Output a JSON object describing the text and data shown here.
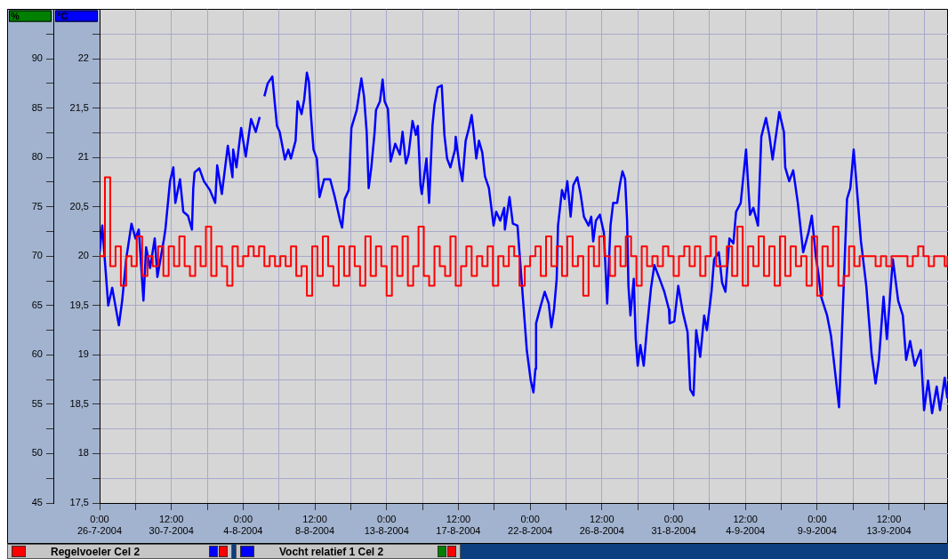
{
  "chart_data": {
    "type": "line",
    "ylabel": "%",
    "y2label": "°C",
    "legend": "bottom",
    "grid": true,
    "marker": "none",
    "xlim": [
      "2004-07-26T00:00",
      "2004-09-17T05:00"
    ],
    "xticks": [
      {
        "value": "2004-07-26T00:00",
        "label": "0:00\n26-7-2004"
      },
      {
        "value": "2004-07-28T06:00",
        "label": null
      },
      {
        "value": "2004-07-30T12:00",
        "label": "12:00\n30-7-2004"
      },
      {
        "value": "2004-08-01T18:00",
        "label": null
      },
      {
        "value": "2004-08-04T00:00",
        "label": "0:00\n4-8-2004"
      },
      {
        "value": "2004-08-06T06:00",
        "label": null
      },
      {
        "value": "2004-08-08T12:00",
        "label": "12:00\n8-8-2004"
      },
      {
        "value": "2004-08-10T18:00",
        "label": null
      },
      {
        "value": "2004-08-13T00:00",
        "label": "0:00\n13-8-2004"
      },
      {
        "value": "2004-08-15T06:00",
        "label": null
      },
      {
        "value": "2004-08-17T12:00",
        "label": "12:00\n17-8-2004"
      },
      {
        "value": "2004-08-19T18:00",
        "label": null
      },
      {
        "value": "2004-08-22T00:00",
        "label": "0:00\n22-8-2004"
      },
      {
        "value": "2004-08-24T06:00",
        "label": null
      },
      {
        "value": "2004-08-26T12:00",
        "label": "12:00\n26-8-2004"
      },
      {
        "value": "2004-08-28T18:00",
        "label": null
      },
      {
        "value": "2004-08-31T00:00",
        "label": "0:00\n31-8-2004"
      },
      {
        "value": "2004-09-02T06:00",
        "label": null
      },
      {
        "value": "2004-09-04T12:00",
        "label": "12:00\n4-9-2004"
      },
      {
        "value": "2004-09-06T18:00",
        "label": null
      },
      {
        "value": "2004-09-09T00:00",
        "label": "0:00\n9-9-2004"
      },
      {
        "value": "2004-09-11T06:00",
        "label": null
      },
      {
        "value": "2004-09-13T12:00",
        "label": "12:00\n13-9-2004"
      },
      {
        "value": "2004-09-15T18:00",
        "label": null
      }
    ],
    "ylim": [
      45,
      95
    ],
    "yticks": [
      45,
      {
        "value": 47.5,
        "label": null
      },
      50,
      {
        "value": 52.5,
        "label": null
      },
      55,
      {
        "value": 57.5,
        "label": null
      },
      60,
      {
        "value": 62.5,
        "label": null
      },
      65,
      {
        "value": 67.5,
        "label": null
      },
      70,
      {
        "value": 72.5,
        "label": null
      },
      75,
      {
        "value": 77.5,
        "label": null
      },
      80,
      {
        "value": 82.5,
        "label": null
      },
      85,
      {
        "value": 87.5,
        "label": null
      },
      90,
      {
        "value": 92.5,
        "label": null
      }
    ],
    "y2lim": [
      17.5,
      22.5
    ],
    "y2ticks": [
      {
        "value": 17.5,
        "label": "17,5"
      },
      {
        "value": 17.75,
        "label": null
      },
      18,
      {
        "value": 18.25,
        "label": null
      },
      {
        "value": 18.5,
        "label": "18,5"
      },
      {
        "value": 18.75,
        "label": null
      },
      19,
      {
        "value": 19.25,
        "label": null
      },
      {
        "value": 19.5,
        "label": "19,5"
      },
      {
        "value": 19.75,
        "label": null
      },
      20,
      {
        "value": 20.25,
        "label": null
      },
      {
        "value": 20.5,
        "label": "20,5"
      },
      {
        "value": 20.75,
        "label": null
      },
      21,
      {
        "value": 21.25,
        "label": null
      },
      {
        "value": 21.5,
        "label": "21,5"
      },
      {
        "value": 21.75,
        "label": null
      },
      22,
      {
        "value": 22.25,
        "label": null
      }
    ],
    "series": [
      {
        "name": "Regelvoeler Cel 2",
        "type": "step",
        "axis": "y2",
        "color": "#ff0000",
        "x": [
          "2004-07-26T00:00",
          "2004-07-26T08:00",
          "2004-07-26T16:00",
          "2004-07-27T00:00",
          "2004-07-27T08:00",
          "2004-07-27T16:00",
          "2004-07-28T00:00",
          "2004-07-28T08:00",
          "2004-07-28T16:00",
          "2004-07-29T00:00",
          "2004-07-29T08:00",
          "2004-07-29T16:00",
          "2004-07-30T00:00",
          "2004-07-30T08:00",
          "2004-07-30T16:00",
          "2004-07-31T00:00",
          "2004-07-31T08:00",
          "2004-07-31T16:00",
          "2004-08-01T00:00",
          "2004-08-01T08:00",
          "2004-08-01T16:00",
          "2004-08-02T00:00",
          "2004-08-02T08:00",
          "2004-08-02T16:00",
          "2004-08-03T00:00",
          "2004-08-03T08:00",
          "2004-08-03T16:00",
          "2004-08-04T00:00",
          "2004-08-04T08:00",
          "2004-08-04T16:00",
          "2004-08-05T00:00",
          "2004-08-05T08:00",
          "2004-08-05T16:00",
          "2004-08-06T00:00",
          "2004-08-06T08:00",
          "2004-08-06T16:00",
          "2004-08-07T00:00",
          "2004-08-07T08:00",
          "2004-08-07T16:00",
          "2004-08-08T00:00",
          "2004-08-08T08:00",
          "2004-08-08T16:00",
          "2004-08-09T00:00",
          "2004-08-09T08:00",
          "2004-08-09T16:00",
          "2004-08-10T00:00",
          "2004-08-10T08:00",
          "2004-08-10T16:00",
          "2004-08-11T00:00",
          "2004-08-11T08:00",
          "2004-08-11T16:00",
          "2004-08-12T00:00",
          "2004-08-12T08:00",
          "2004-08-12T16:00",
          "2004-08-13T00:00",
          "2004-08-13T08:00",
          "2004-08-13T16:00",
          "2004-08-14T00:00",
          "2004-08-14T08:00",
          "2004-08-14T16:00",
          "2004-08-15T00:00",
          "2004-08-15T08:00",
          "2004-08-15T16:00",
          "2004-08-16T00:00",
          "2004-08-16T08:00",
          "2004-08-16T16:00",
          "2004-08-17T00:00",
          "2004-08-17T08:00",
          "2004-08-17T16:00",
          "2004-08-18T00:00",
          "2004-08-18T08:00",
          "2004-08-18T16:00",
          "2004-08-19T00:00",
          "2004-08-19T08:00",
          "2004-08-19T16:00",
          "2004-08-20T00:00",
          "2004-08-20T08:00",
          "2004-08-20T16:00",
          "2004-08-21T00:00",
          "2004-08-21T08:00",
          "2004-08-21T16:00",
          "2004-08-22T00:00",
          "2004-08-22T08:00",
          "2004-08-22T16:00",
          "2004-08-23T00:00",
          "2004-08-23T08:00",
          "2004-08-23T16:00",
          "2004-08-24T00:00",
          "2004-08-24T08:00",
          "2004-08-24T16:00",
          "2004-08-25T00:00",
          "2004-08-25T08:00",
          "2004-08-25T16:00",
          "2004-08-26T00:00",
          "2004-08-26T08:00",
          "2004-08-26T16:00",
          "2004-08-27T00:00",
          "2004-08-27T08:00",
          "2004-08-27T16:00",
          "2004-08-28T00:00",
          "2004-08-28T08:00",
          "2004-08-28T16:00",
          "2004-08-29T00:00",
          "2004-08-29T08:00",
          "2004-08-29T16:00",
          "2004-08-30T00:00",
          "2004-08-30T08:00",
          "2004-08-30T16:00",
          "2004-08-31T00:00",
          "2004-08-31T08:00",
          "2004-08-31T16:00",
          "2004-09-01T00:00",
          "2004-09-01T08:00",
          "2004-09-01T16:00",
          "2004-09-02T00:00",
          "2004-09-02T08:00",
          "2004-09-02T16:00",
          "2004-09-03T00:00",
          "2004-09-03T08:00",
          "2004-09-03T16:00",
          "2004-09-04T00:00",
          "2004-09-04T08:00",
          "2004-09-04T16:00",
          "2004-09-05T00:00",
          "2004-09-05T08:00",
          "2004-09-05T16:00",
          "2004-09-06T00:00",
          "2004-09-06T08:00",
          "2004-09-06T16:00",
          "2004-09-07T00:00",
          "2004-09-07T08:00",
          "2004-09-07T16:00",
          "2004-09-08T00:00",
          "2004-09-08T08:00",
          "2004-09-08T16:00",
          "2004-09-09T00:00",
          "2004-09-09T08:00",
          "2004-09-09T16:00",
          "2004-09-10T00:00",
          "2004-09-10T08:00",
          "2004-09-10T16:00",
          "2004-09-11T00:00",
          "2004-09-11T08:00",
          "2004-09-11T16:00",
          "2004-09-12T00:00",
          "2004-09-12T08:00",
          "2004-09-12T16:00",
          "2004-09-13T00:00",
          "2004-09-13T08:00",
          "2004-09-13T16:00",
          "2004-09-14T00:00",
          "2004-09-14T08:00",
          "2004-09-14T16:00",
          "2004-09-15T00:00",
          "2004-09-15T08:00",
          "2004-09-15T16:00",
          "2004-09-16T00:00",
          "2004-09-16T08:00",
          "2004-09-16T16:00",
          "2004-09-17T00:00",
          "2004-09-17T04:00"
        ],
        "values": [
          20.0,
          20.8,
          19.9,
          20.1,
          19.7,
          20.0,
          19.9,
          20.2,
          19.8,
          20.0,
          19.9,
          20.1,
          19.8,
          20.1,
          19.9,
          20.2,
          19.9,
          19.8,
          20.1,
          19.9,
          20.3,
          19.8,
          20.1,
          19.9,
          19.7,
          20.1,
          19.9,
          20.0,
          20.1,
          20.0,
          20.1,
          19.9,
          20.0,
          19.9,
          20.0,
          19.9,
          20.1,
          19.8,
          19.9,
          19.6,
          20.1,
          19.8,
          20.2,
          19.9,
          19.7,
          20.1,
          19.8,
          20.1,
          19.9,
          19.7,
          20.2,
          19.8,
          20.1,
          19.9,
          19.6,
          20.1,
          19.8,
          20.2,
          19.7,
          19.9,
          20.3,
          19.8,
          19.7,
          20.1,
          19.9,
          19.8,
          20.2,
          19.7,
          19.9,
          20.1,
          19.8,
          20.0,
          19.9,
          20.1,
          19.7,
          20.0,
          19.9,
          20.1,
          20.0,
          19.7,
          19.9,
          20.0,
          20.1,
          19.8,
          20.2,
          19.9,
          20.1,
          19.8,
          20.2,
          19.9,
          20.0,
          19.6,
          20.1,
          19.9,
          20.2,
          20.0,
          19.8,
          20.1,
          19.9,
          20.2,
          20.0,
          19.7,
          20.1,
          19.9,
          20.0,
          19.9,
          20.1,
          20.0,
          19.8,
          20.0,
          20.1,
          19.9,
          20.1,
          19.8,
          20.0,
          20.2,
          19.9,
          19.9,
          20.1,
          19.8,
          20.3,
          19.7,
          20.1,
          19.9,
          20.2,
          19.8,
          20.1,
          19.7,
          20.2,
          19.8,
          20.1,
          19.9,
          20.0,
          19.7,
          20.2,
          19.6,
          20.1,
          19.9,
          20.3,
          19.7,
          19.8,
          20.1,
          19.9,
          20.0,
          20.0,
          20.0,
          19.9,
          20.0,
          19.9,
          20.0,
          20.0,
          20.0,
          19.9,
          20.0,
          20.1,
          20.0,
          19.9,
          20.0,
          20.0,
          19.9,
          20.0
        ]
      },
      {
        "name": "Vocht relatief 1 Cel 2",
        "type": "line",
        "axis": "y",
        "color": "#0000ff",
        "x": [
          "2004-07-26T00:00",
          "2004-07-26T04:00",
          "2004-07-26T13:00",
          "2004-07-26T19:00",
          "2004-07-27T05:00",
          "2004-07-27T10:00",
          "2004-07-27T16:00",
          "2004-07-28T00:00",
          "2004-07-28T06:00",
          "2004-07-28T11:00",
          "2004-07-28T18:00",
          "2004-07-28T22:00",
          "2004-07-29T04:00",
          "2004-07-29T11:00",
          "2004-07-29T15:00",
          "2004-07-30T01:00",
          "2004-07-30T03:00",
          "2004-07-30T10:00",
          "2004-07-30T15:00",
          "2004-07-30T18:00",
          "2004-07-31T01:00",
          "2004-07-31T06:00",
          "2004-07-31T13:00",
          "2004-07-31T19:00",
          "2004-07-31T21:00",
          "2004-07-31T23:00",
          "2004-08-01T06:00",
          "2004-08-01T13:00",
          "2004-08-01T22:00",
          "2004-08-02T06:00",
          "2004-08-02T09:00",
          "2004-08-02T16:00",
          "2004-08-03T01:00",
          "2004-08-03T08:00",
          "2004-08-03T09:00",
          "2004-08-03T14:00",
          "2004-08-03T21:00",
          "2004-08-04T04:00",
          "2004-08-04T12:00",
          "2004-08-04T19:00",
          "2004-08-05T01:00",
          "2004-08-05T04:00",
          "2004-08-05T08:00",
          "2004-08-05T13:00",
          "2004-08-05T20:00",
          "2004-08-06T00:00",
          "2004-08-06T03:00",
          "2004-08-06T07:00",
          "2004-08-06T15:00",
          "2004-08-06T20:00",
          "2004-08-07T00:00",
          "2004-08-07T07:00",
          "2004-08-07T10:00",
          "2004-08-07T16:00",
          "2004-08-07T20:00",
          "2004-08-08T00:00",
          "2004-08-08T03:00",
          "2004-08-08T06:00",
          "2004-08-08T10:00",
          "2004-08-08T15:00",
          "2004-08-08T19:00",
          "2004-08-09T02:00",
          "2004-08-09T11:00",
          "2004-08-09T18:00",
          "2004-08-10T02:00",
          "2004-08-10T05:00",
          "2004-08-10T09:00",
          "2004-08-10T15:00",
          "2004-08-10T19:00",
          "2004-08-11T03:00",
          "2004-08-11T10:00",
          "2004-08-11T14:00",
          "2004-08-11T18:00",
          "2004-08-11T21:00",
          "2004-08-12T01:00",
          "2004-08-12T06:00",
          "2004-08-12T08:00",
          "2004-08-12T14:00",
          "2004-08-12T18:00",
          "2004-08-12T21:00",
          "2004-08-13T02:00",
          "2004-08-13T06:00",
          "2004-08-13T13:00",
          "2004-08-13T20:00",
          "2004-08-14T00:00",
          "2004-08-14T05:00",
          "2004-08-14T09:00",
          "2004-08-14T15:00",
          "2004-08-14T20:00",
          "2004-08-14T23:00",
          "2004-08-15T03:00",
          "2004-08-15T05:00",
          "2004-08-15T12:00",
          "2004-08-15T16:00",
          "2004-08-15T21:00",
          "2004-08-16T00:00",
          "2004-08-16T05:00",
          "2004-08-16T11:00",
          "2004-08-16T15:00",
          "2004-08-16T19:00",
          "2004-08-17T00:00",
          "2004-08-17T07:00",
          "2004-08-17T08:00",
          "2004-08-17T14:00",
          "2004-08-17T18:00",
          "2004-08-17T23:00",
          "2004-08-18T04:00",
          "2004-08-18T08:00",
          "2004-08-18T11:00",
          "2004-08-18T15:00",
          "2004-08-18T19:00",
          "2004-08-19T00:00",
          "2004-08-19T04:00",
          "2004-08-19T10:00",
          "2004-08-19T17:00",
          "2004-08-19T21:00",
          "2004-08-20T03:00",
          "2004-08-20T09:00",
          "2004-08-20T10:00",
          "2004-08-20T17:00",
          "2004-08-20T22:00",
          "2004-08-21T05:00",
          "2004-08-21T09:00",
          "2004-08-21T13:00",
          "2004-08-21T19:00",
          "2004-08-22T01:00",
          "2004-08-22T05:00",
          "2004-08-22T08:00",
          "2004-08-22T09:00",
          "2004-08-22T16:00",
          "2004-08-22T22:00",
          "2004-08-23T04:00",
          "2004-08-23T08:00",
          "2004-08-23T12:00",
          "2004-08-23T16:00",
          "2004-08-23T18:00",
          "2004-08-24T00:00",
          "2004-08-24T04:00",
          "2004-08-24T08:00",
          "2004-08-24T13:00",
          "2004-08-24T17:00",
          "2004-08-24T23:00",
          "2004-08-25T04:00",
          "2004-08-25T09:00",
          "2004-08-25T16:00",
          "2004-08-25T20:00",
          "2004-08-25T23:00",
          "2004-08-26T03:00",
          "2004-08-26T09:00",
          "2004-08-26T15:00",
          "2004-08-26T20:00",
          "2004-08-27T01:00",
          "2004-08-27T05:00",
          "2004-08-27T11:00",
          "2004-08-27T15:00",
          "2004-08-27T19:00",
          "2004-08-27T23:00",
          "2004-08-28T02:00",
          "2004-08-28T04:00",
          "2004-08-28T07:00",
          "2004-08-28T12:00",
          "2004-08-28T15:00",
          "2004-08-28T18:00",
          "2004-08-28T22:00",
          "2004-08-29T03:00",
          "2004-08-29T08:00",
          "2004-08-29T14:00",
          "2004-08-29T19:00",
          "2004-08-30T03:00",
          "2004-08-30T10:00",
          "2004-08-30T17:00",
          "2004-08-30T18:00",
          "2004-08-31T01:00",
          "2004-08-31T07:00",
          "2004-08-31T14:00",
          "2004-08-31T21:00",
          "2004-09-01T01:00",
          "2004-09-01T06:00",
          "2004-09-01T10:00",
          "2004-09-01T16:00",
          "2004-09-01T22:00",
          "2004-09-02T02:00",
          "2004-09-02T09:00",
          "2004-09-02T13:00",
          "2004-09-02T20:00",
          "2004-09-03T01:00",
          "2004-09-03T06:00",
          "2004-09-03T12:00",
          "2004-09-03T18:00",
          "2004-09-03T22:00",
          "2004-09-04T05:00",
          "2004-09-04T13:00",
          "2004-09-04T19:00",
          "2004-09-05T00:00",
          "2004-09-05T07:00",
          "2004-09-05T12:00",
          "2004-09-05T19:00",
          "2004-09-06T00:00",
          "2004-09-06T05:00",
          "2004-09-06T15:00",
          "2004-09-06T22:00",
          "2004-09-07T00:00",
          "2004-09-07T06:00",
          "2004-09-07T12:00",
          "2004-09-07T19:00",
          "2004-09-08T03:00",
          "2004-09-08T11:00",
          "2004-09-08T16:00",
          "2004-09-08T22:00",
          "2004-09-09T02:00",
          "2004-09-09T06:00",
          "2004-09-09T15:00",
          "2004-09-09T21:00",
          "2004-09-10T02:00",
          "2004-09-10T09:00",
          "2004-09-10T14:00",
          "2004-09-10T21:00",
          "2004-09-11T02:00",
          "2004-09-11T07:00",
          "2004-09-11T11:00",
          "2004-09-11T18:00",
          "2004-09-12T02:00",
          "2004-09-12T10:00",
          "2004-09-12T16:00",
          "2004-09-12T21:00",
          "2004-09-13T04:00",
          "2004-09-13T09:00",
          "2004-09-13T18:00",
          "2004-09-14T02:00",
          "2004-09-14T09:00",
          "2004-09-14T14:00",
          "2004-09-14T20:00",
          "2004-09-15T03:00",
          "2004-09-15T12:00",
          "2004-09-15T17:00",
          "2004-09-15T23:00",
          "2004-09-16T05:00",
          "2004-09-16T12:00",
          "2004-09-16T17:00",
          "2004-09-17T00:00",
          "2004-09-17T04:00"
        ],
        "values": [
          70.4,
          73.1,
          65,
          66.8,
          63,
          65.5,
          69.7,
          73.3,
          71.8,
          72.7,
          65.5,
          70.9,
          68.8,
          71.8,
          67.9,
          71.8,
          72.7,
          77.6,
          79,
          75.4,
          77.8,
          74.5,
          74.1,
          72.7,
          76.9,
          78.5,
          78.9,
          77.6,
          76.7,
          75.4,
          79.2,
          76.3,
          81.2,
          78,
          80.8,
          79,
          83,
          80.1,
          83.9,
          82.6,
          84.1,
          null,
          86.2,
          87.5,
          88.2,
          85.3,
          83.2,
          82.6,
          79.8,
          80.8,
          79.9,
          81.7,
          85.7,
          84.4,
          85.9,
          88.6,
          87.7,
          84.4,
          80.8,
          79.9,
          76,
          77.8,
          77.8,
          76,
          73.6,
          72.9,
          75.8,
          76.7,
          83,
          84.8,
          88,
          86.2,
          82.6,
          76.9,
          79,
          82.6,
          84.8,
          85.7,
          87.9,
          85.7,
          84.9,
          79.6,
          81.4,
          80.3,
          82.6,
          79.4,
          80.3,
          83.7,
          82.3,
          83.2,
          77.2,
          76.3,
          79.9,
          75.4,
          83.2,
          85.3,
          87.1,
          87.3,
          82.3,
          79.9,
          79,
          80.8,
          82.1,
          79,
          77.6,
          81.7,
          83,
          84.3,
          82.6,
          79.9,
          81.7,
          80.5,
          78.1,
          76.9,
          73.1,
          74.5,
          73.6,
          74.9,
          72.7,
          76,
          73.3,
          73.1,
          69.5,
          65.9,
          60.5,
          57.4,
          56.2,
          58.6,
          63.2,
          65,
          66.4,
          65.2,
          62.8,
          64.6,
          67.7,
          73.1,
          76.7,
          75.8,
          77.6,
          74,
          77.2,
          78,
          76.3,
          74,
          73.1,
          74,
          71.5,
          73.6,
          74.2,
          72.4,
          65.2,
          73.1,
          75.4,
          75.4,
          77.2,
          78.6,
          77.8,
          73.6,
          67,
          64,
          67.7,
          61.6,
          58.9,
          61,
          58.9,
          62.8,
          66.8,
          69.1,
          67.7,
          66.4,
          64.6,
          63.2,
          63.4,
          67,
          64.3,
          62.3,
          56.5,
          55.9,
          62.5,
          59.8,
          64,
          62.5,
          66.4,
          69.7,
          70.4,
          67.3,
          66.4,
          71.8,
          71.3,
          74.5,
          75.4,
          80.8,
          74.2,
          74.9,
          73.1,
          82.1,
          84,
          82.3,
          79.8,
          84.6,
          82.6,
          79,
          77.6,
          78.7,
          75.4,
          70.4,
          72.4,
          74.1,
          70,
          68.2,
          65.9,
          64,
          61.9,
          58.9,
          54.7,
          63.4,
          75.8,
          76.9,
          80.8,
          77.6,
          71.5,
          67,
          60.1,
          57.1,
          59.5,
          65.9,
          61.6,
          69.7,
          65.5,
          64,
          59.5,
          61.4,
          58.9,
          60.5,
          54.4,
          57.4,
          54.1,
          56.8,
          54.4,
          57.7,
          55.6
        ]
      }
    ]
  }
}
